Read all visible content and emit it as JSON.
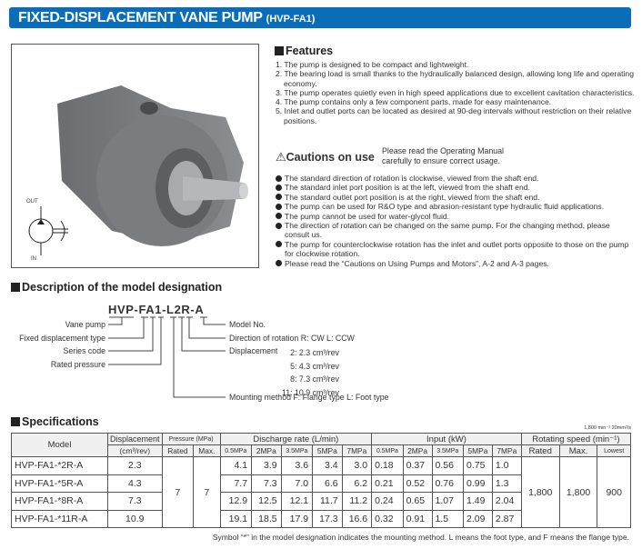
{
  "header": {
    "title": "FIXED-DISPLACEMENT VANE PUMP",
    "code": "(HVP-FA1)"
  },
  "symbol": {
    "out": "OUT",
    "in": "IN"
  },
  "features": {
    "heading": "Features",
    "items": [
      "1. The pump is designed to be compact and lightweight.",
      "2. The bearing load is small thanks to the hydraulically balanced design, allowing long life and operating economy.",
      "3. The pump operates quietly even in high speed applications due to excellent cavitation characteristics.",
      "4. The pump contains only a few component parts, made for easy maintenance.",
      "5. Inlet and outlet ports can be located as desired at 90-deg intervals without restriction on their relative positions."
    ]
  },
  "cautions": {
    "heading": "Cautions on use",
    "note1": "Please read the Operating Manual",
    "note2": "carefully to ensure correct usage.",
    "items": [
      "The standard direction of rotation is clockwise, viewed from the shaft end.",
      "The standard inlet port position is at the left, viewed from the shaft end.",
      "The standard outlet port position is at the right, viewed from the shaft end.",
      "The pump can be used for R&O type and abrasion-resistant type hydraulic fluid applications.",
      "The pump cannot be used for water-glycol fluid.",
      "The direction of rotation can be changed on the same pump. For the changing method, please consult us.",
      "The pump for counterclockwise rotation has the inlet and outlet ports opposite to those on the pump for clockwise rotation.",
      "Please read the “Cautions on Using Pumps and Motors”, A-2 and A-3 pages."
    ]
  },
  "designation": {
    "heading": "Description of the model designation",
    "code": "HVP-FA1-L2R-A",
    "left": [
      "Vane pump",
      "Fixed displacement type",
      "Series code",
      "Rated pressure"
    ],
    "model_no": "Model No.",
    "direction": "Direction of rotation  R: CW  L: CCW",
    "displacement_label": "Displacement",
    "displacements": [
      "2:  2.3 cm³/rev",
      "5:  4.3 cm³/rev",
      "8:  7.3 cm³/rev",
      "11: 10.9 cm³/rev"
    ],
    "mounting": "Mounting method  F: Flange type  L: Foot type"
  },
  "specs": {
    "heading": "Specifications",
    "condition": "1,800 min⁻¹ 20mm²/s",
    "headers": {
      "model": "Model",
      "displacement": "Displacement",
      "disp_unit": "(cm³/rev)",
      "pressure": "Pressure (MPa)",
      "rated": "Rated",
      "max": "Max.",
      "discharge": "Discharge rate (L/min)",
      "input": "Input (kW)",
      "speed": "Rotating speed (min⁻¹)",
      "lowest": "Lowest",
      "pressures": [
        "0.5MPa",
        "2MPa",
        "3.5MPa",
        "5MPa",
        "7MPa"
      ]
    },
    "pressure_rated": "7",
    "pressure_max": "7",
    "speed_rated": "1,800",
    "speed_max": "1,800",
    "speed_lowest": "900",
    "rows": [
      {
        "model": "HVP-FA1-*2R-A",
        "disp": "2.3",
        "q": [
          "4.1",
          "3.9",
          "3.6",
          "3.4",
          "3.0"
        ],
        "p": [
          "0.18",
          "0.37",
          "0.56",
          "0.75",
          "1.0"
        ]
      },
      {
        "model": "HVP-FA1-*5R-A",
        "disp": "4.3",
        "q": [
          "7.7",
          "7.3",
          "7.0",
          "6.6",
          "6.2"
        ],
        "p": [
          "0.21",
          "0.52",
          "0.76",
          "0.99",
          "1.3"
        ]
      },
      {
        "model": "HVP-FA1-*8R-A",
        "disp": "7.3",
        "q": [
          "12.9",
          "12.5",
          "12.1",
          "11.7",
          "11.2"
        ],
        "p": [
          "0.24",
          "0.65",
          "1.07",
          "1.49",
          "2.04"
        ]
      },
      {
        "model": "HVP-FA1-*11R-A",
        "disp": "10.9",
        "q": [
          "19.1",
          "18.5",
          "17.9",
          "17.3",
          "16.6"
        ],
        "p": [
          "0.32",
          "0.91",
          "1.5",
          "2.09",
          "2.87"
        ]
      }
    ],
    "footnote": "Symbol “*” in the model designation indicates the mounting method. L means the foot type, and F means the flange type."
  }
}
